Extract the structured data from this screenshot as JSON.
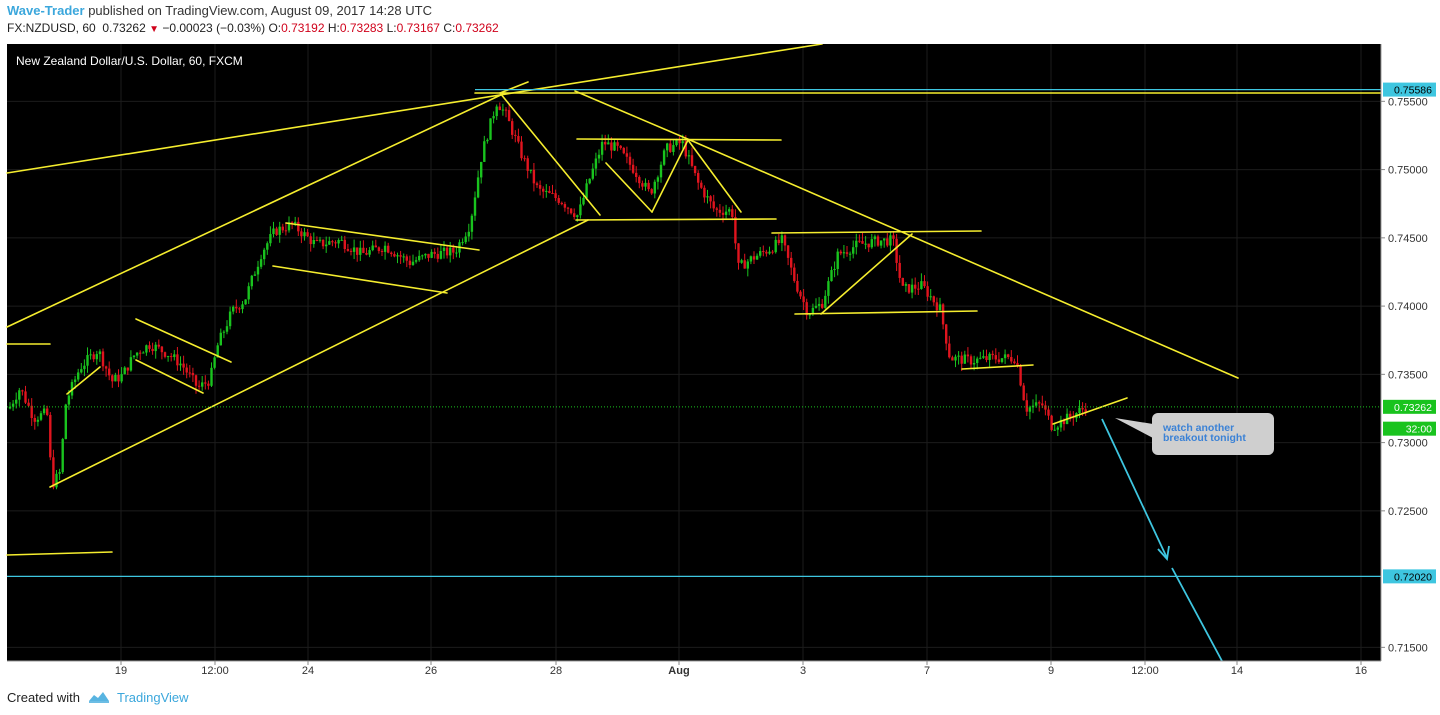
{
  "header": {
    "author": "Wave-Trader",
    "published_text": "published on TradingView.com, August 09, 2017 14:28 UTC",
    "symbol": "FX:NZDUSD, 60",
    "last": "0.73262",
    "change": "−0.00023 (−0.03%)",
    "o_label": "O:",
    "o_val": "0.73192",
    "h_label": "H:",
    "h_val": "0.73283",
    "l_label": "L:",
    "l_val": "0.73167",
    "c_label": "C:",
    "c_val": "0.73262"
  },
  "chart_data": {
    "type": "candlestick",
    "title": "New Zealand Dollar/U.S. Dollar, 60, FXCM",
    "ylim": [
      0.714,
      0.7592
    ],
    "y_ticks": [
      "0.75500",
      "0.75000",
      "0.74500",
      "0.74000",
      "0.73500",
      "0.73000",
      "0.72500",
      "0.71500"
    ],
    "x_ticks": [
      "19",
      "12:00",
      "24",
      "26",
      "28",
      "Aug",
      "3",
      "7",
      "9",
      "12:00",
      "14",
      "16"
    ],
    "price_labels": [
      {
        "value": "0.75586",
        "price": 0.75586,
        "color": "#3ec6e0"
      },
      {
        "value": "0.73262",
        "price": 0.73262,
        "color": "#19c31e"
      },
      {
        "value": "32:00",
        "price": 0.73102,
        "color": "#19c31e"
      },
      {
        "value": "0.72020",
        "price": 0.7202,
        "color": "#3ec6e0"
      }
    ],
    "horizontal_levels": [
      {
        "price": 0.75586,
        "color": "#3ec6e0"
      },
      {
        "price": 0.7202,
        "color": "#3ec6e0"
      }
    ],
    "last_price": 0.73262,
    "annotation": "watch another breakout tonight",
    "colors": {
      "up": "#19c31e",
      "down": "#e0141e",
      "trendline": "#f5ed2e",
      "level": "#3ec6e0",
      "grid": "#1c1c1c"
    }
  },
  "footer": {
    "created_with": "Created with",
    "brand": "TradingView"
  }
}
